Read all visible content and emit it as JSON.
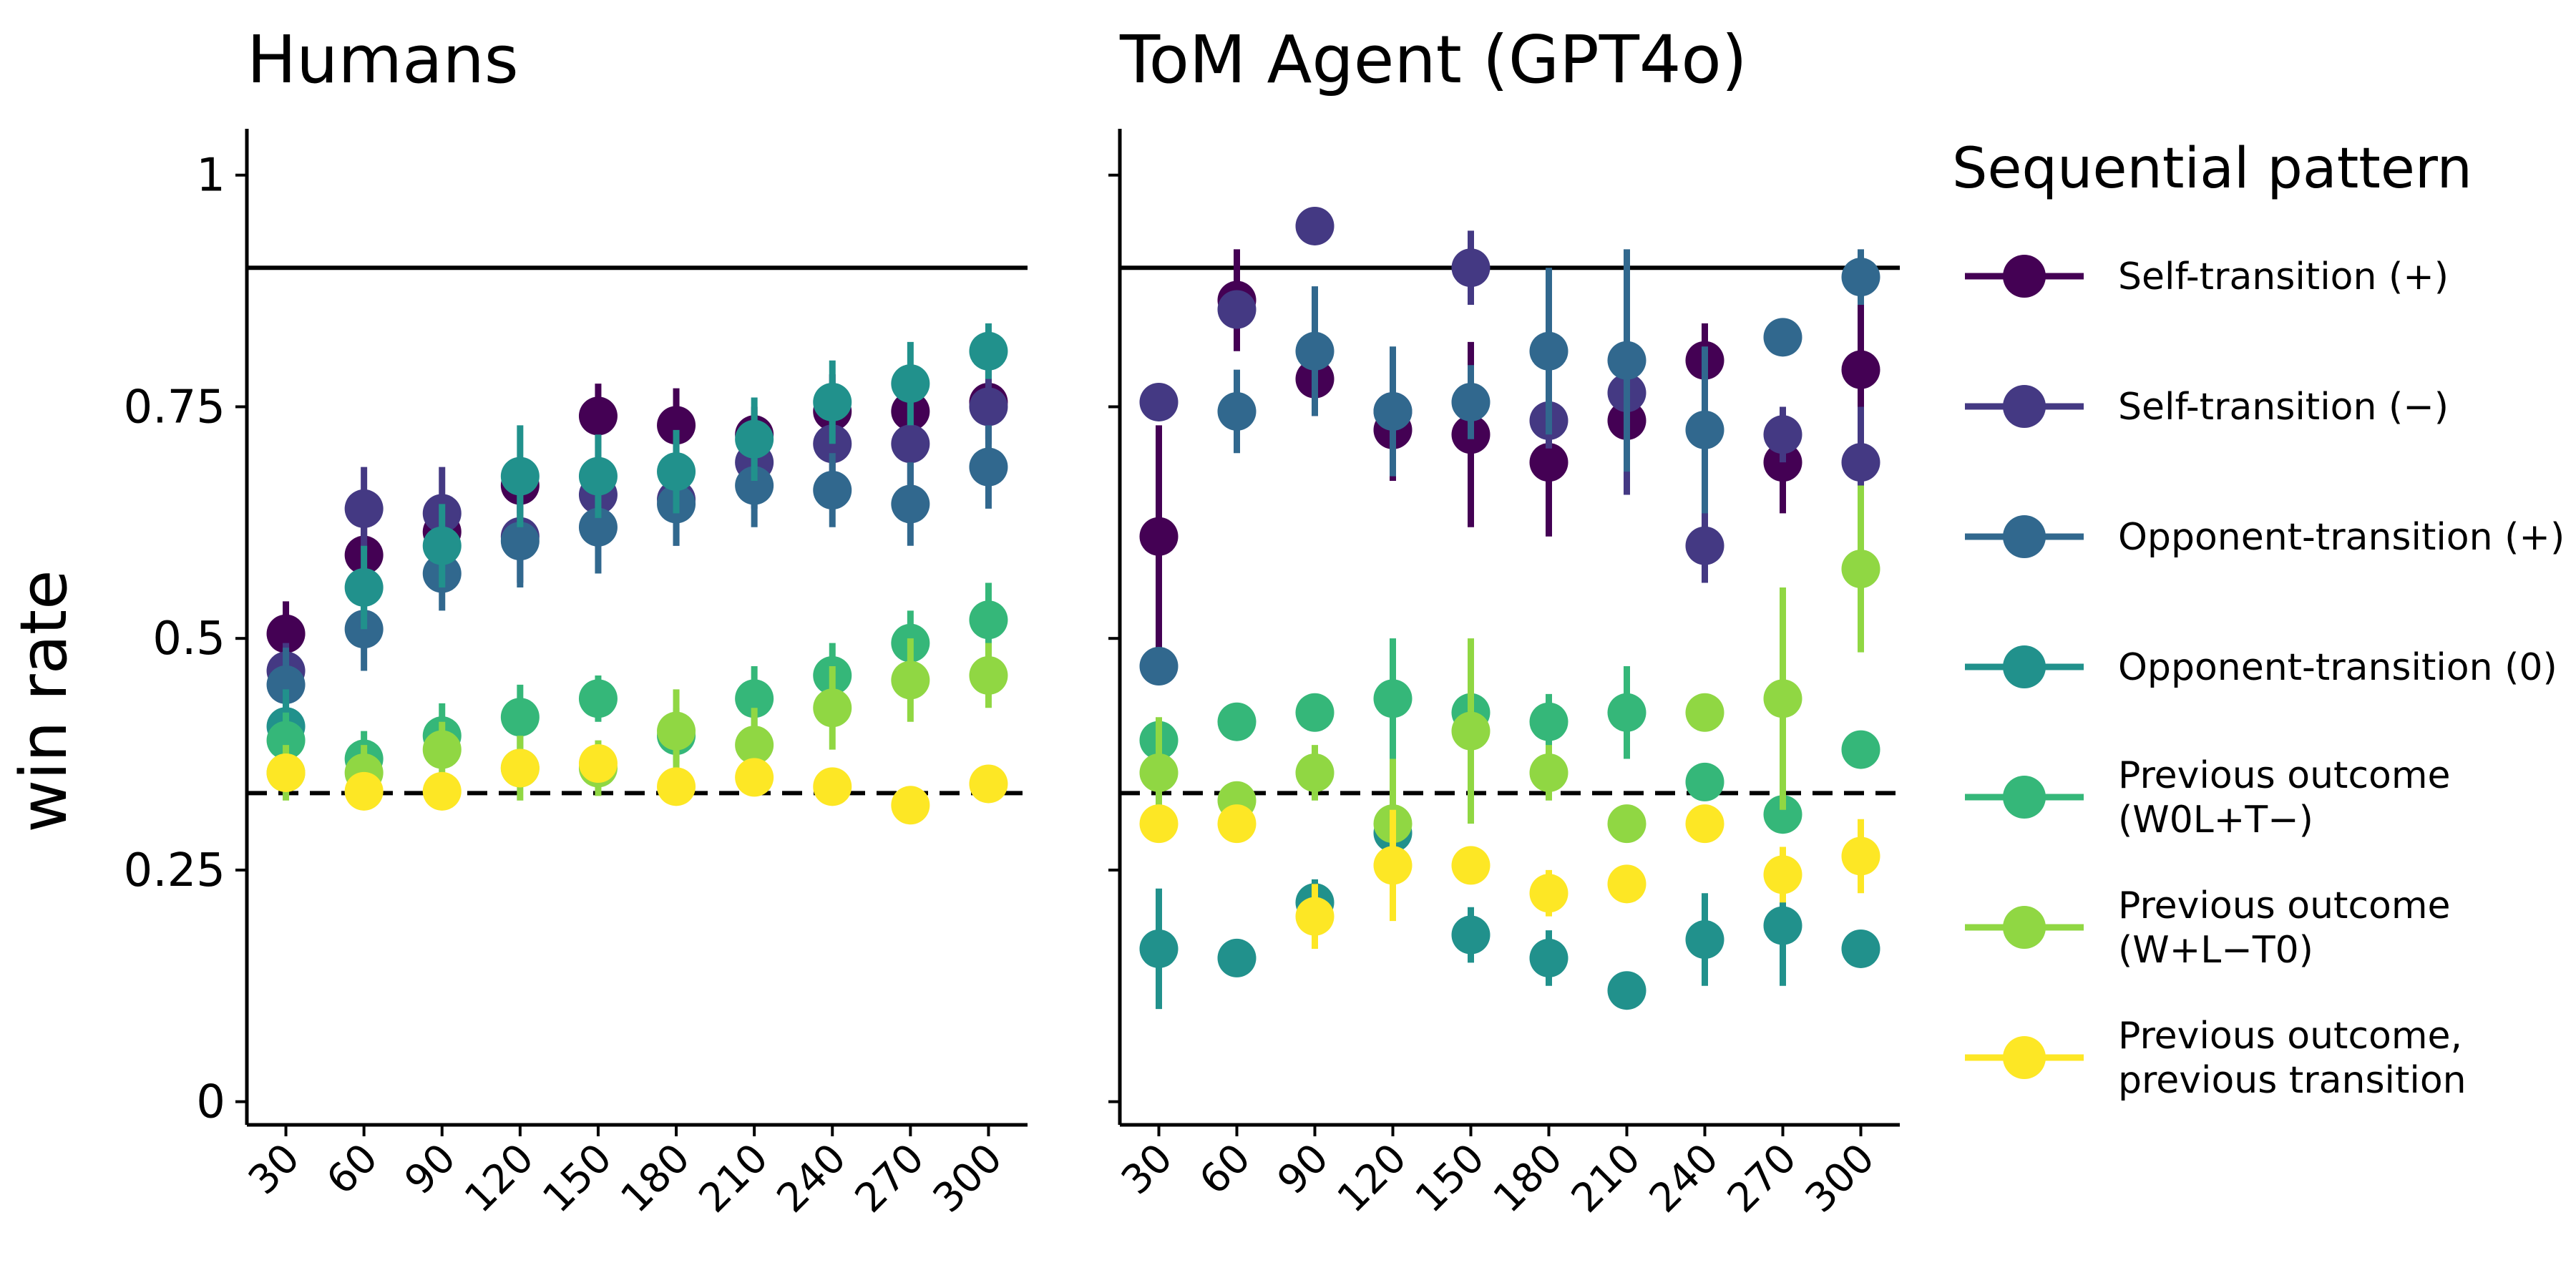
{
  "chart_data": {
    "type": "scatter",
    "y_label": "win rate",
    "y_ticks": [
      0,
      0.25,
      0.5,
      0.75,
      1
    ],
    "y_tick_labels": [
      "0",
      "0.25",
      "0.5",
      "0.75",
      "1"
    ],
    "ylim": [
      -0.025,
      1.05
    ],
    "x_ticks": [
      30,
      60,
      90,
      120,
      150,
      180,
      210,
      240,
      270,
      300
    ],
    "xlim": [
      15,
      315
    ],
    "reference_lines": [
      {
        "y": 0.9,
        "style": "solid"
      },
      {
        "y": 0.333,
        "style": "dashed"
      }
    ],
    "legend": {
      "title": "Sequential pattern",
      "placement": "right"
    },
    "series_meta": [
      {
        "key": "s1",
        "name": [
          "Self-transition (+)"
        ],
        "color": "#440154"
      },
      {
        "key": "s2",
        "name": [
          "Self-transition (−)"
        ],
        "color": "#443983"
      },
      {
        "key": "s3",
        "name": [
          "Opponent-transition (+)"
        ],
        "color": "#31688e"
      },
      {
        "key": "s4",
        "name": [
          "Opponent-transition (0)"
        ],
        "color": "#21918c"
      },
      {
        "key": "s5",
        "name": [
          "Previous outcome",
          "(W0L+T−)"
        ],
        "color": "#35b779"
      },
      {
        "key": "s6",
        "name": [
          "Previous outcome",
          "(W+L−T0)"
        ],
        "color": "#90d743"
      },
      {
        "key": "s7",
        "name": [
          "Previous outcome,",
          "previous transition"
        ],
        "color": "#fde725"
      }
    ],
    "panels": [
      {
        "title": "Humans",
        "series": {
          "s1": {
            "y": [
              0.505,
              0.59,
              0.615,
              0.665,
              0.74,
              0.73,
              0.72,
              0.745,
              0.745,
              0.755
            ],
            "err": [
              0.035,
              0.03,
              0.03,
              0.03,
              0.035,
              0.04,
              0.03,
              0.04,
              0.04,
              0.04
            ]
          },
          "s2": {
            "y": [
              0.465,
              0.64,
              0.635,
              0.61,
              0.655,
              0.65,
              0.69,
              0.71,
              0.71,
              0.75
            ],
            "err": [
              0.03,
              0.045,
              0.05,
              0.05,
              0.05,
              0.05,
              0.05,
              0.05,
              0.05,
              0.04
            ]
          },
          "s3": {
            "y": [
              0.45,
              0.51,
              0.57,
              0.605,
              0.62,
              0.645,
              0.665,
              0.66,
              0.645,
              0.685
            ],
            "err": [
              0.04,
              0.045,
              0.04,
              0.05,
              0.05,
              0.045,
              0.045,
              0.04,
              0.045,
              0.045
            ]
          },
          "s4": {
            "y": [
              0.405,
              0.555,
              0.6,
              0.675,
              0.675,
              0.68,
              0.715,
              0.755,
              0.775,
              0.81
            ],
            "err": [
              0.04,
              0.045,
              0.045,
              0.055,
              0.045,
              0.045,
              0.045,
              0.045,
              0.045,
              0.03
            ]
          },
          "s5": {
            "y": [
              0.39,
              0.37,
              0.395,
              0.415,
              0.435,
              0.395,
              0.435,
              0.46,
              0.495,
              0.52
            ],
            "err": [
              0.03,
              0.03,
              0.035,
              0.035,
              0.025,
              0.03,
              0.035,
              0.035,
              0.035,
              0.04
            ]
          },
          "s6": {
            "y": [
              0.355,
              0.355,
              0.38,
              0.36,
              0.36,
              0.4,
              0.385,
              0.425,
              0.455,
              0.46
            ],
            "err": [
              0.03,
              0.03,
              0.03,
              0.035,
              0.03,
              0.045,
              0.04,
              0.045,
              0.045,
              0.035
            ]
          },
          "s7": {
            "y": [
              0.355,
              0.335,
              0.335,
              0.36,
              0.365,
              0.34,
              0.35,
              0.34,
              0.32,
              0.343
            ],
            "err": [
              0.02,
              0.02,
              0.015,
              0.02,
              0.02,
              0.015,
              0.015,
              0.015,
              0.015,
              0.015
            ]
          }
        }
      },
      {
        "title": "ToM Agent (GPT4o)",
        "series": {
          "s1": {
            "y": [
              0.61,
              0.865,
              0.78,
              0.725,
              0.72,
              0.69,
              0.735,
              0.8,
              0.69,
              0.79
            ],
            "err": [
              0.12,
              0.055,
              0.04,
              0.055,
              0.1,
              0.08,
              0.05,
              0.04,
              0.055,
              0.11
            ]
          },
          "s2": {
            "y": [
              0.755,
              0.855,
              0.945,
              0.745,
              0.9,
              0.735,
              0.765,
              0.6,
              0.72,
              0.69
            ],
            "err": [
              0.02,
              0.02,
              0.02,
              0.02,
              0.04,
              0.03,
              0.11,
              0.04,
              0.03,
              0.06
            ]
          },
          "s3": {
            "y": [
              0.47,
              0.745,
              0.81,
              0.745,
              0.755,
              0.81,
              0.8,
              0.725,
              0.825,
              0.89
            ],
            "err": [
              0.02,
              0.045,
              0.07,
              0.07,
              0.04,
              0.09,
              0.12,
              0.09,
              0.02,
              0.03
            ]
          },
          "s4": {
            "y": [
              0.165,
              0.155,
              0.215,
              0.29,
              0.18,
              0.155,
              0.12,
              0.175,
              0.19,
              0.165
            ],
            "err": [
              0.065,
              0.02,
              0.025,
              0.025,
              0.03,
              0.03,
              0.02,
              0.05,
              0.065,
              0.02
            ]
          },
          "s5": {
            "y": [
              0.39,
              0.41,
              0.42,
              0.435,
              0.42,
              0.41,
              0.42,
              0.345,
              0.31,
              0.38
            ],
            "err": [
              0.02,
              0.02,
              0.02,
              0.065,
              0.04,
              0.03,
              0.05,
              0.02,
              0.02,
              0.02
            ]
          },
          "s6": {
            "y": [
              0.355,
              0.325,
              0.355,
              0.3,
              0.4,
              0.355,
              0.3,
              0.42,
              0.435,
              0.575
            ],
            "err": [
              0.06,
              0.02,
              0.03,
              0.07,
              0.1,
              0.03,
              0.02,
              0.02,
              0.12,
              0.09
            ]
          },
          "s7": {
            "y": [
              0.3,
              0.3,
              0.2,
              0.255,
              0.255,
              0.225,
              0.235,
              0.3,
              0.245,
              0.265
            ],
            "err": [
              0.02,
              0.02,
              0.035,
              0.06,
              0.02,
              0.025,
              0.02,
              0.02,
              0.03,
              0.04
            ]
          }
        }
      }
    ]
  }
}
